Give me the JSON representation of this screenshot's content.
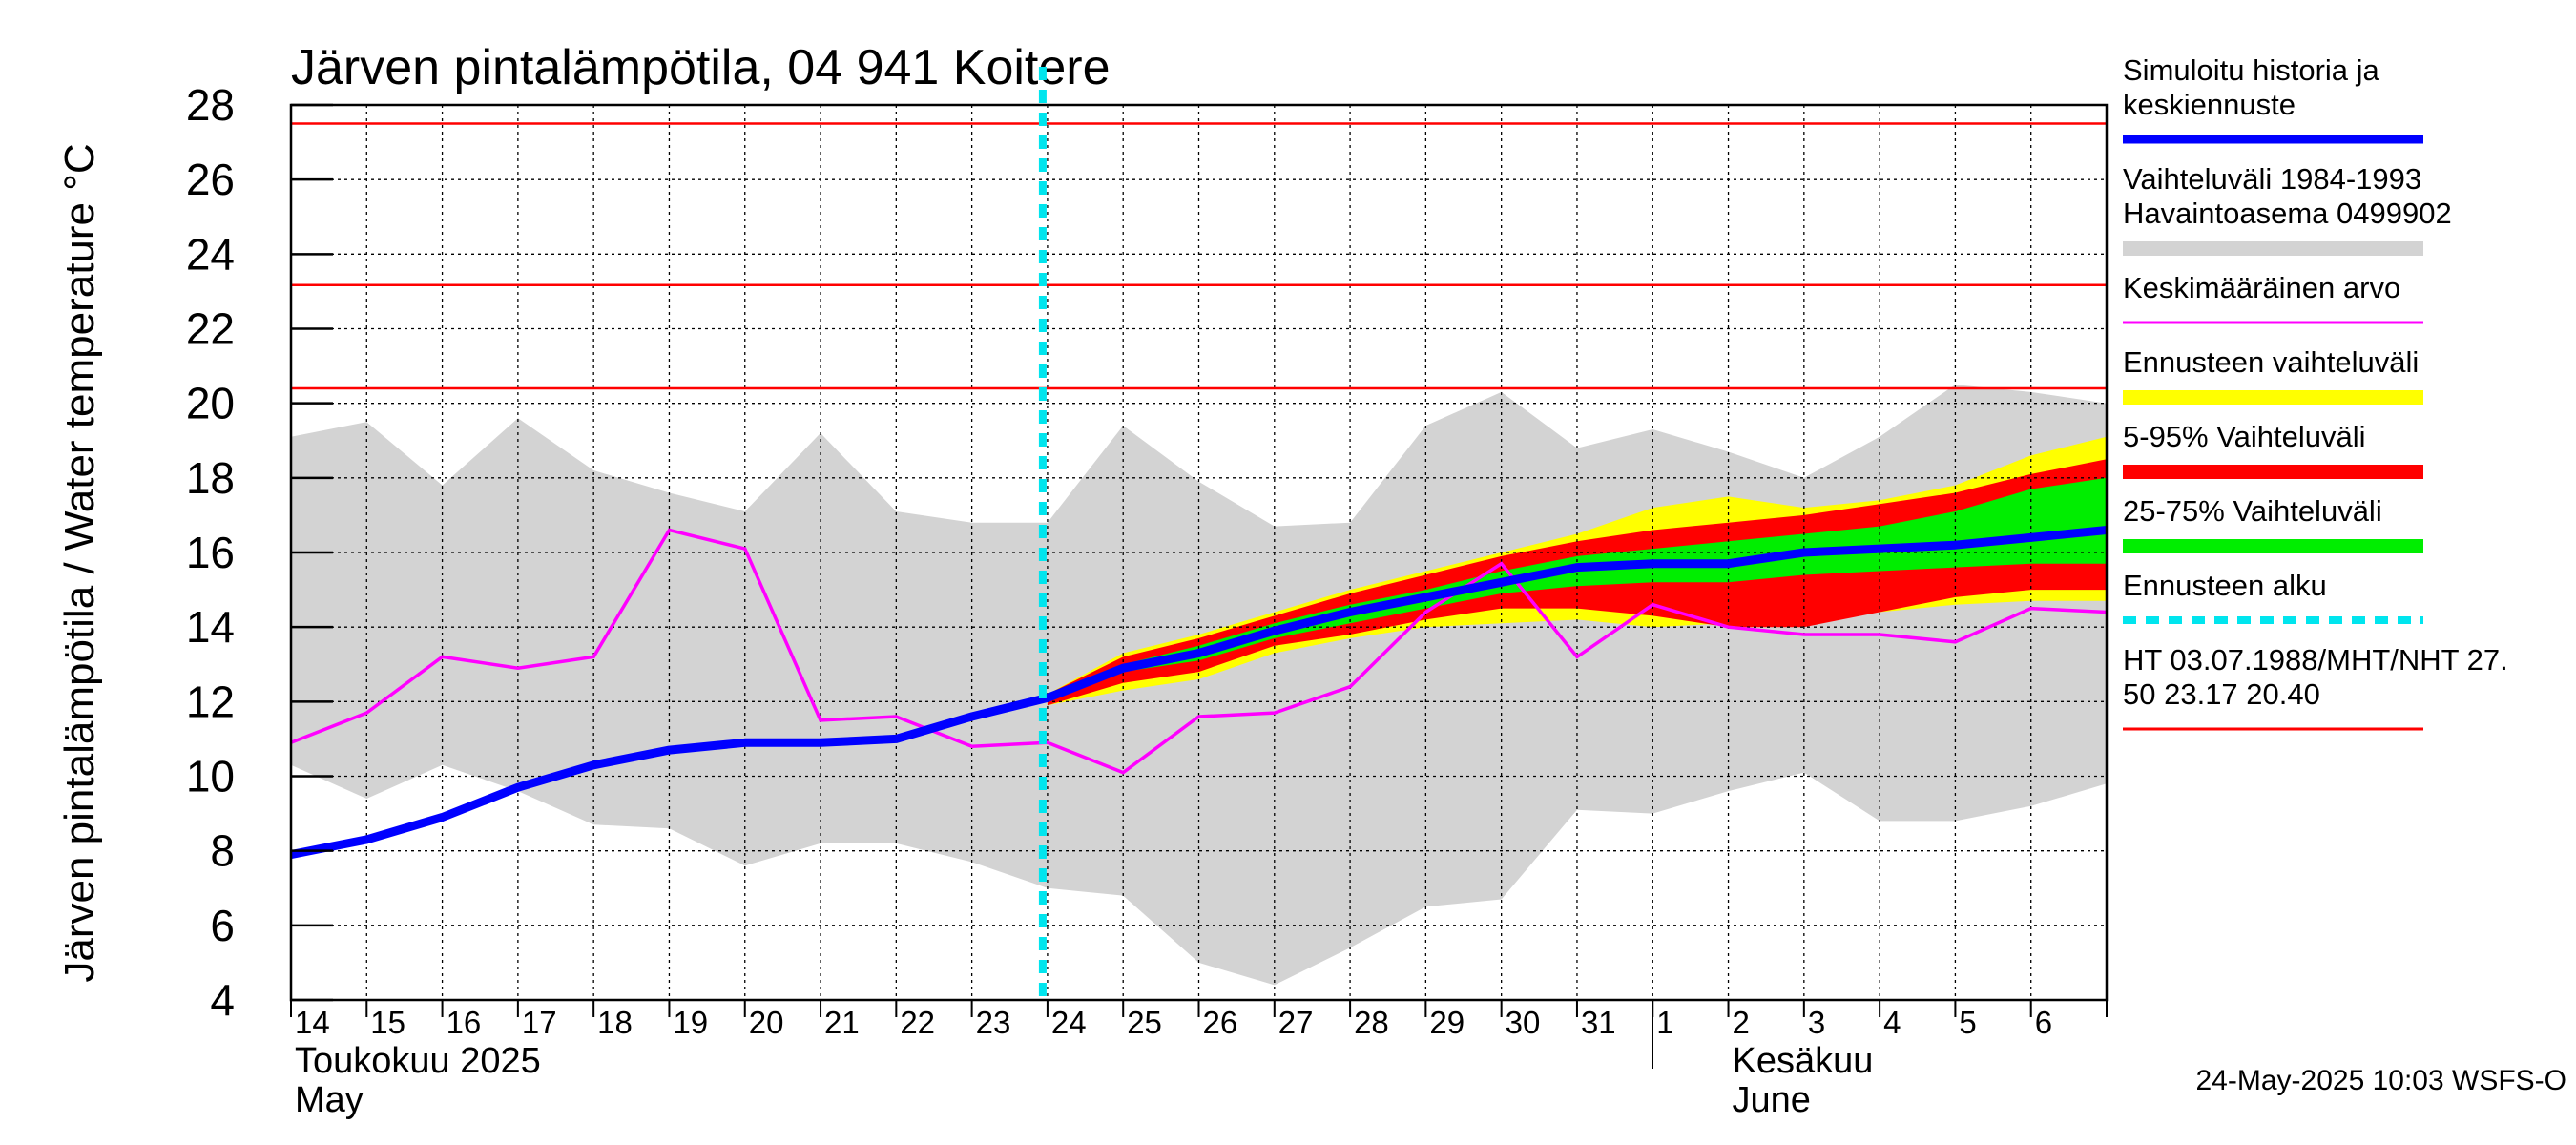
{
  "chart_data": {
    "type": "line",
    "title": "Järven pintalämpötila, 04 941 Koitere",
    "ylabel": "Järven pintalämpötila / Water temperature °C",
    "xlabel": "",
    "ylim": [
      4,
      28
    ],
    "yticks": [
      4,
      6,
      8,
      10,
      12,
      14,
      16,
      18,
      20,
      22,
      24,
      26,
      28
    ],
    "grid": true,
    "legend_position": "right",
    "x_days": [
      "14",
      "15",
      "16",
      "17",
      "18",
      "19",
      "20",
      "21",
      "22",
      "23",
      "24",
      "25",
      "26",
      "27",
      "28",
      "29",
      "30",
      "31",
      "1",
      "2",
      "3",
      "4",
      "5",
      "6"
    ],
    "month_labels": [
      {
        "line1": "Toukokuu  2025",
        "line2": "May",
        "at_day_index": 0
      },
      {
        "line1": "Kesäkuu",
        "line2": "June",
        "at_day_index": 19
      }
    ],
    "x_day_range": [
      0,
      24
    ],
    "month_boundary_day": 18,
    "forecast_start_day": 10,
    "thresholds": [
      {
        "name": "HT",
        "value": 27.5
      },
      {
        "name": "MHT",
        "value": 23.17
      },
      {
        "name": "NHT",
        "value": 20.4
      }
    ],
    "series": {
      "history_range": {
        "x": [
          0,
          1,
          2,
          3,
          4,
          5,
          6,
          7,
          8,
          9,
          10,
          11,
          12,
          13,
          14,
          15,
          16,
          17,
          18,
          19,
          20,
          21,
          22,
          23,
          24
        ],
        "upper": [
          19.1,
          19.5,
          17.8,
          19.6,
          18.2,
          17.6,
          17.1,
          19.2,
          17.1,
          16.8,
          16.8,
          19.4,
          17.9,
          16.7,
          16.8,
          19.4,
          20.3,
          18.8,
          19.3,
          18.7,
          18.0,
          19.1,
          20.5,
          20.3,
          20.0
        ],
        "lower": [
          10.3,
          9.4,
          10.3,
          9.6,
          8.7,
          8.6,
          7.6,
          8.2,
          8.2,
          7.7,
          7.0,
          6.8,
          5.0,
          4.4,
          5.4,
          6.5,
          6.7,
          9.1,
          9.0,
          9.6,
          10.1,
          8.8,
          8.8,
          9.2,
          9.8
        ]
      },
      "forecast_range": {
        "x": [
          10,
          11,
          12,
          13,
          14,
          15,
          16,
          17,
          18,
          19,
          20,
          21,
          22,
          23,
          24
        ],
        "upper": [
          12.2,
          13.3,
          13.8,
          14.4,
          15.0,
          15.5,
          16.0,
          16.5,
          17.2,
          17.5,
          17.2,
          17.4,
          17.8,
          18.6,
          19.1
        ],
        "lower": [
          11.9,
          12.3,
          12.6,
          13.3,
          13.7,
          14.0,
          14.1,
          14.2,
          14.0,
          14.1,
          14.2,
          14.4,
          14.6,
          14.7,
          14.7
        ]
      },
      "p5_95": {
        "x": [
          10,
          11,
          12,
          13,
          14,
          15,
          16,
          17,
          18,
          19,
          20,
          21,
          22,
          23,
          24
        ],
        "upper": [
          12.2,
          13.2,
          13.7,
          14.3,
          14.9,
          15.4,
          15.9,
          16.3,
          16.6,
          16.8,
          17.0,
          17.3,
          17.6,
          18.1,
          18.5
        ],
        "lower": [
          11.9,
          12.5,
          12.8,
          13.5,
          13.8,
          14.2,
          14.5,
          14.5,
          14.3,
          14.0,
          14.0,
          14.4,
          14.8,
          15.0,
          15.0
        ]
      },
      "p25_75": {
        "x": [
          10,
          11,
          12,
          13,
          14,
          15,
          16,
          17,
          18,
          19,
          20,
          21,
          22,
          23,
          24
        ],
        "upper": [
          12.2,
          13.0,
          13.5,
          14.1,
          14.6,
          15.0,
          15.5,
          15.9,
          16.1,
          16.3,
          16.5,
          16.7,
          17.1,
          17.7,
          18.0
        ],
        "lower": [
          12.0,
          12.8,
          13.1,
          13.7,
          14.1,
          14.5,
          14.9,
          15.1,
          15.2,
          15.2,
          15.4,
          15.5,
          15.6,
          15.7,
          15.7
        ]
      },
      "mean": {
        "x": [
          0,
          1,
          2,
          3,
          4,
          5,
          6,
          7,
          8,
          9,
          10,
          11,
          12,
          13,
          14,
          15,
          16,
          17,
          18,
          19,
          20,
          21,
          22,
          23,
          24
        ],
        "values": [
          10.9,
          11.7,
          13.2,
          12.9,
          13.2,
          16.6,
          16.1,
          11.5,
          11.6,
          10.8,
          10.9,
          10.1,
          11.6,
          11.7,
          12.4,
          14.4,
          15.7,
          13.2,
          14.6,
          14.0,
          13.8,
          13.8,
          13.6,
          14.5,
          14.4
        ]
      },
      "simulated": {
        "x": [
          0,
          1,
          2,
          3,
          4,
          5,
          6,
          7,
          8,
          9,
          10,
          11,
          12,
          13,
          14,
          15,
          16,
          17,
          18,
          19,
          20,
          21,
          22,
          23,
          24
        ],
        "values": [
          7.9,
          8.3,
          8.9,
          9.7,
          10.3,
          10.7,
          10.9,
          10.9,
          11.0,
          11.6,
          12.1,
          12.9,
          13.3,
          13.9,
          14.4,
          14.8,
          15.2,
          15.6,
          15.7,
          15.7,
          16.0,
          16.1,
          16.2,
          16.4,
          16.6
        ]
      }
    },
    "legend": [
      {
        "lines": [
          "Simuloitu historia ja",
          "keskiennuste"
        ],
        "color": "#0000ff",
        "kind": "line"
      },
      {
        "lines": [
          "Vaihteluväli 1984-1993",
          " Havaintoasema 0499902"
        ],
        "color": "#d3d3d3",
        "kind": "band"
      },
      {
        "lines": [
          "Keskimääräinen arvo"
        ],
        "color": "#ff00ff",
        "kind": "thin"
      },
      {
        "lines": [
          "Ennusteen vaihteluväli"
        ],
        "color": "#ffff00",
        "kind": "band"
      },
      {
        "lines": [
          "5-95% Vaihteluväli"
        ],
        "color": "#ff0000",
        "kind": "band"
      },
      {
        "lines": [
          "25-75% Vaihteluväli"
        ],
        "color": "#00ee00",
        "kind": "band"
      },
      {
        "lines": [
          "Ennusteen alku"
        ],
        "color": "#00e5ee",
        "kind": "dashed"
      },
      {
        "lines": [
          "HT 03.07.1988/MHT/NHT 27.",
          "50 23.17 20.40"
        ],
        "color": "#ff0000",
        "kind": "thin"
      }
    ],
    "colors": {
      "history": "#d3d3d3",
      "forecast": "#ffff00",
      "p5_95": "#ff0000",
      "p25_75": "#00ee00",
      "mean": "#ff00ff",
      "simulated": "#0000ff",
      "forecast_start": "#00e5ee",
      "threshold": "#ff0000"
    }
  },
  "footer": "24-May-2025 10:03 WSFS-O"
}
